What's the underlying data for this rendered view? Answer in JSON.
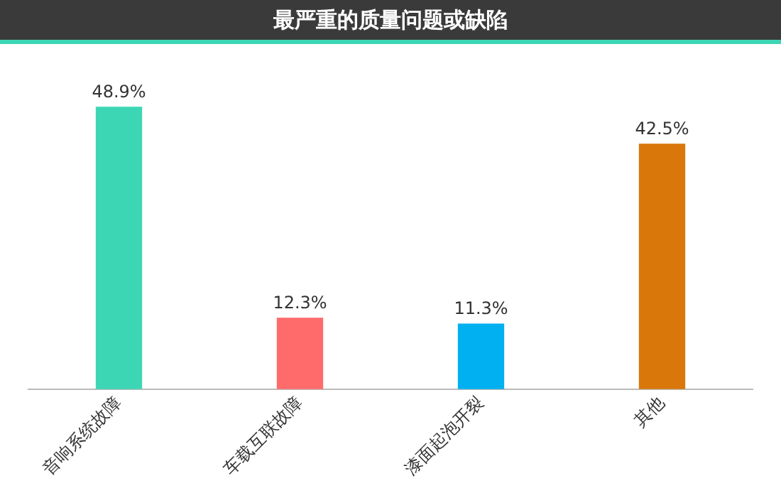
{
  "chart_data": {
    "type": "bar",
    "title": "最严重的质量问题或缺陷",
    "categories": [
      "音响系统故障",
      "车载互联故障",
      "漆面起泡开裂",
      "其他"
    ],
    "values": [
      48.9,
      12.3,
      11.3,
      42.5
    ],
    "colors": [
      "#3dd6b5",
      "#ff6b6b",
      "#00b0f0",
      "#d9770b"
    ],
    "value_labels": [
      "48.9%",
      "12.3%",
      "11.3%",
      "42.5%"
    ],
    "grid": false,
    "legend": false
  }
}
